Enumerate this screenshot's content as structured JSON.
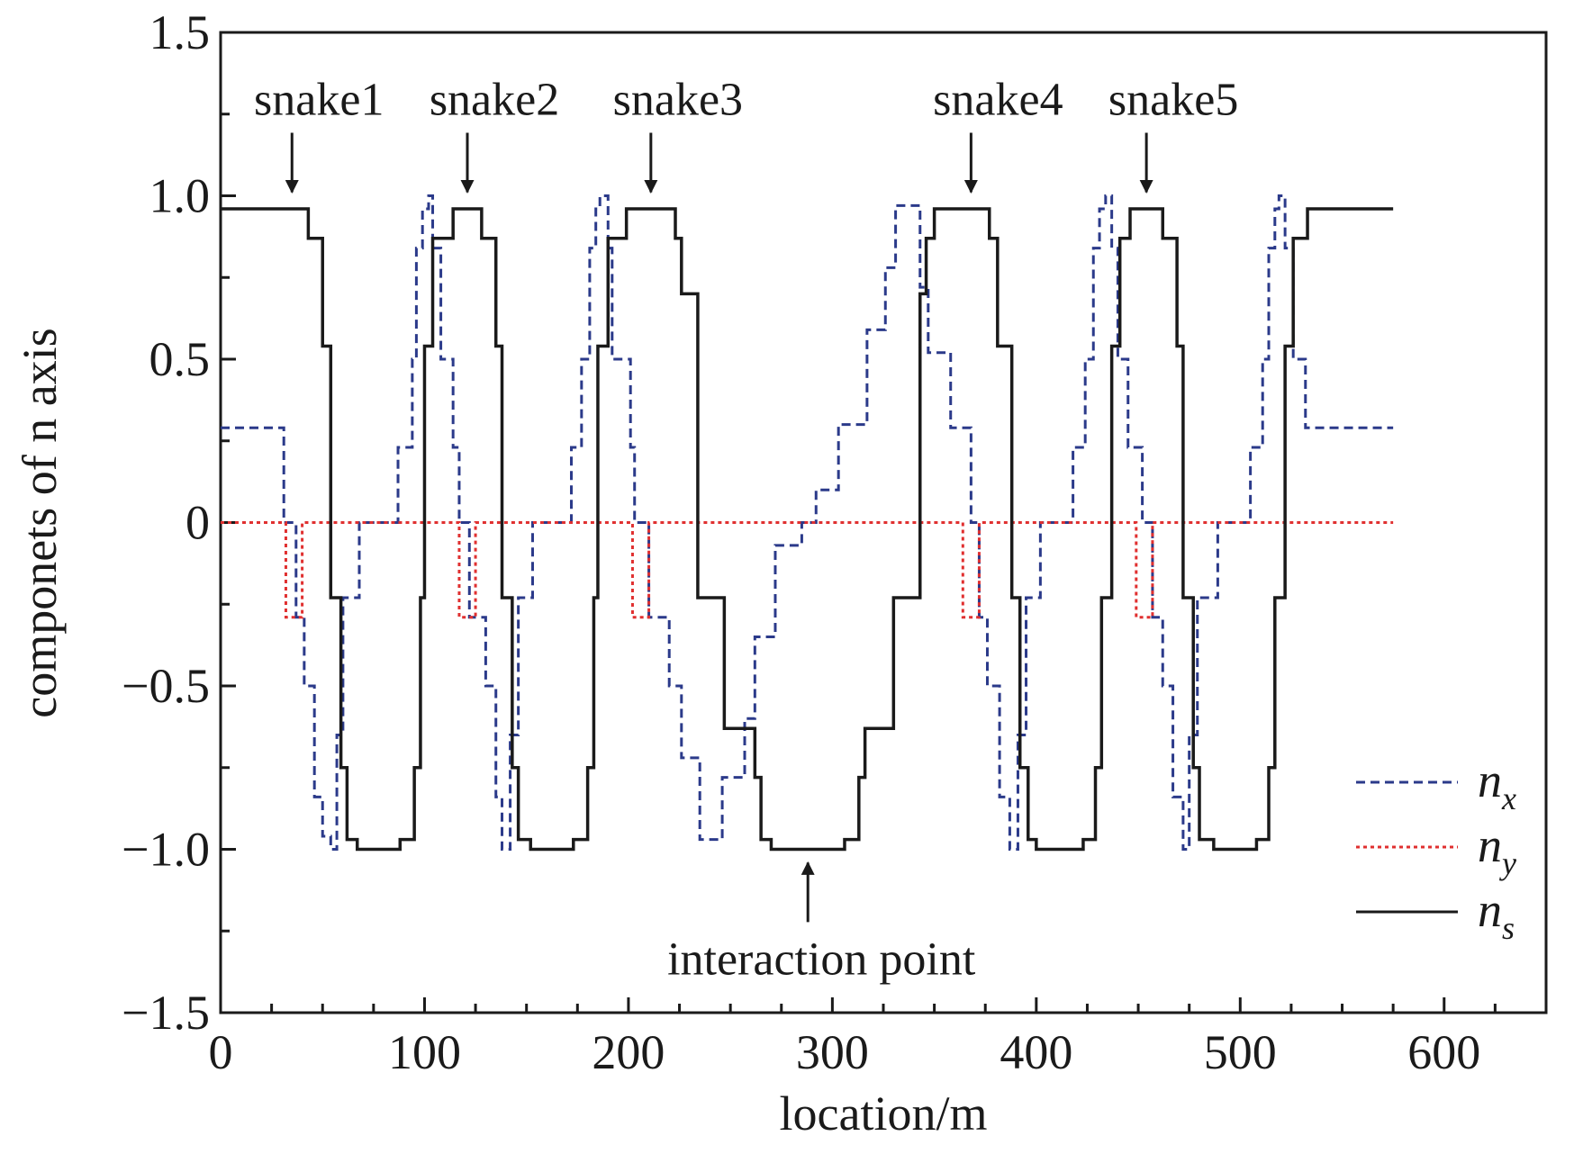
{
  "chart_data": {
    "type": "line",
    "drawstyle": "steps-post",
    "xlabel": "location/m",
    "ylabel": "componets of n axis",
    "xlim": [
      0,
      650
    ],
    "ylim": [
      -1.5,
      1.5
    ],
    "xticks": [
      0,
      100,
      200,
      300,
      400,
      500,
      600
    ],
    "xminorticks": [
      25,
      50,
      75,
      125,
      150,
      175,
      225,
      250,
      275,
      325,
      350,
      375,
      425,
      450,
      475,
      525,
      550,
      575,
      625
    ],
    "yticks": [
      {
        "value": -1.5,
        "label": "−1.5"
      },
      {
        "value": -1.0,
        "label": "−1.0"
      },
      {
        "value": -0.5,
        "label": "−0.5"
      },
      0,
      0.5,
      {
        "value": 1.0,
        "label": "1.0"
      },
      1.5
    ],
    "yminorticks": [
      -1.25,
      -0.75,
      -0.25,
      0.25,
      0.75,
      1.25
    ],
    "x_end": 575,
    "legend": "lower right",
    "series": [
      {
        "name": "nx",
        "color": "#2b3a8a",
        "style": "dashed",
        "x": [
          0,
          31,
          37,
          41,
          46,
          50,
          54,
          57,
          60,
          68,
          87,
          94,
          96,
          99,
          102,
          104,
          108,
          114,
          117,
          122,
          130,
          135,
          138,
          142,
          146,
          153,
          172,
          177,
          181,
          184,
          186,
          190,
          192,
          201,
          203,
          210,
          220,
          226,
          235,
          246,
          257,
          262,
          272,
          285,
          292,
          303,
          317,
          326,
          331,
          343,
          347,
          358,
          368,
          372,
          376,
          382,
          387,
          391,
          395,
          402,
          418,
          424,
          428,
          431,
          434,
          437,
          440,
          445,
          452,
          457,
          462,
          467,
          472,
          475,
          479,
          489,
          505,
          511,
          514,
          517,
          519,
          522,
          526,
          532
        ],
        "values": [
          0.29,
          0.0,
          -0.29,
          -0.5,
          -0.84,
          -0.96,
          -1.0,
          -0.65,
          -0.23,
          0.0,
          0.23,
          0.5,
          0.84,
          0.96,
          1.0,
          0.84,
          0.5,
          0.23,
          0.0,
          -0.29,
          -0.5,
          -0.84,
          -1.0,
          -0.65,
          -0.23,
          0.0,
          0.23,
          0.5,
          0.84,
          0.96,
          1.0,
          0.84,
          0.5,
          0.23,
          0.0,
          -0.29,
          -0.5,
          -0.72,
          -0.97,
          -0.78,
          -0.6,
          -0.35,
          -0.07,
          0.0,
          0.1,
          0.3,
          0.59,
          0.78,
          0.97,
          0.72,
          0.52,
          0.29,
          0.0,
          -0.29,
          -0.5,
          -0.84,
          -1.0,
          -0.65,
          -0.23,
          0.0,
          0.23,
          0.5,
          0.84,
          0.96,
          1.0,
          0.84,
          0.5,
          0.23,
          0.0,
          -0.29,
          -0.5,
          -0.84,
          -1.0,
          -0.65,
          -0.23,
          0.0,
          0.23,
          0.5,
          0.84,
          0.96,
          1.0,
          0.84,
          0.5,
          0.29
        ]
      },
      {
        "name": "ny",
        "color": "#e03030",
        "style": "dotted",
        "x": [
          0,
          32,
          40,
          117,
          125,
          202,
          210,
          364,
          372,
          449,
          457
        ],
        "values": [
          0,
          -0.29,
          0,
          -0.29,
          0,
          -0.29,
          0,
          -0.29,
          0,
          -0.29,
          0
        ]
      },
      {
        "name": "ns",
        "color": "#1a1a1a",
        "style": "solid",
        "x": [
          0,
          43,
          50,
          54,
          59,
          62,
          67,
          88,
          95,
          98,
          100,
          104,
          114,
          128,
          135,
          138,
          143,
          146,
          152,
          173,
          180,
          183,
          185,
          190,
          199,
          223,
          226,
          234,
          247,
          262,
          265,
          270,
          306,
          313,
          316,
          330,
          343,
          346,
          350,
          377,
          381,
          388,
          392,
          396,
          400,
          423,
          429,
          432,
          437,
          441,
          446,
          462,
          469,
          472,
          477,
          480,
          487,
          508,
          514,
          517,
          522,
          526,
          533
        ],
        "values": [
          0.96,
          0.87,
          0.54,
          -0.23,
          -0.75,
          -0.97,
          -1.0,
          -0.97,
          -0.75,
          -0.23,
          0.54,
          0.87,
          0.96,
          0.87,
          0.54,
          -0.23,
          -0.75,
          -0.97,
          -1.0,
          -0.97,
          -0.75,
          -0.23,
          0.54,
          0.87,
          0.96,
          0.87,
          0.7,
          -0.23,
          -0.63,
          -0.78,
          -0.97,
          -1.0,
          -0.97,
          -0.78,
          -0.63,
          -0.23,
          0.7,
          0.87,
          0.96,
          0.87,
          0.54,
          -0.23,
          -0.75,
          -0.97,
          -1.0,
          -0.97,
          -0.75,
          -0.23,
          0.54,
          0.87,
          0.96,
          0.87,
          0.54,
          -0.23,
          -0.75,
          -0.97,
          -1.0,
          -0.97,
          -0.75,
          -0.23,
          0.54,
          0.87,
          0.96
        ]
      }
    ],
    "annotations": [
      {
        "text": "snake1",
        "x": 35,
        "y": 1.0,
        "direction": "down"
      },
      {
        "text": "snake2",
        "x": 121,
        "y": 1.0,
        "direction": "down"
      },
      {
        "text": "snake3",
        "x": 211,
        "y": 1.0,
        "direction": "down"
      },
      {
        "text": "snake4",
        "x": 368,
        "y": 1.0,
        "direction": "down"
      },
      {
        "text": "snake5",
        "x": 454,
        "y": 1.0,
        "direction": "down"
      },
      {
        "text": "interaction point",
        "x": 288,
        "y": -1.03,
        "direction": "up"
      }
    ]
  }
}
